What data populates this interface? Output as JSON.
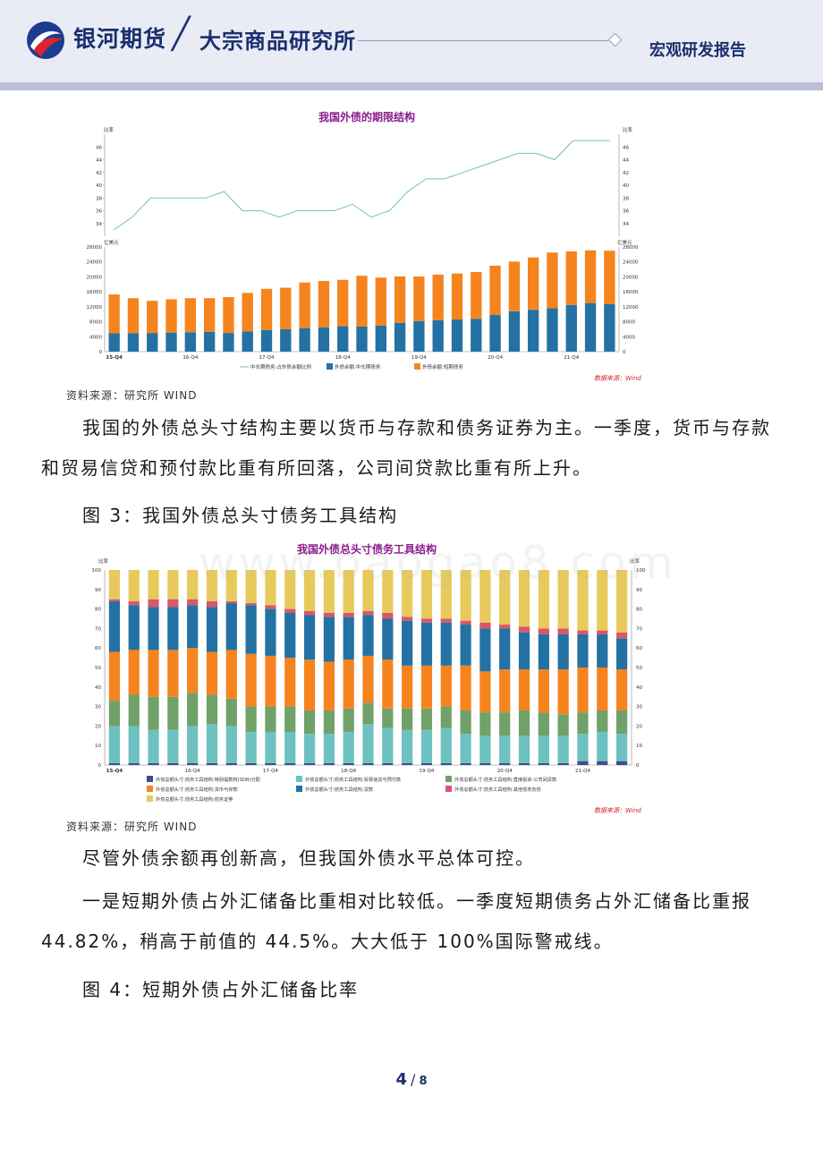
{
  "header": {
    "brand": "银河期货",
    "institute": "大宗商品研究所",
    "report_type": "宏观研发报告"
  },
  "chart1": {
    "title": "我国外债的期限结构",
    "source": "资料来源：研究所 WIND",
    "wind_source": "数据来源：Wind",
    "top_axis_unit_left": "比率",
    "top_axis_unit_right": "比率",
    "bottom_axis_unit_left": "亿美元",
    "bottom_axis_unit_right": "亿美元"
  },
  "para1": "我国的外债总头寸结构主要以货币与存款和债务证券为主。一季度，货币与存款和贸易信贷和预付款比重有所回落，公司间贷款比重有所上升。",
  "fig3_caption": "图 3：我国外债总头寸债务工具结构",
  "chart2": {
    "title": "我国外债总头寸债务工具结构",
    "source": "资料来源：研究所 WIND",
    "wind_source": "数据来源：Wind",
    "axis_unit_left": "比率",
    "axis_unit_right": "比率"
  },
  "para2": "尽管外债余额再创新高，但我国外债水平总体可控。",
  "para3": "一是短期外债占外汇储备比重相对比较低。一季度短期债务占外汇储备比重报 44.82%，稍高于前值的 44.5%。大大低于 100%国际警戒线。",
  "fig4_caption": "图 4：短期外债占外汇储备比率",
  "watermark": "www.baogao8.com",
  "page": {
    "current": "4",
    "sep": "/",
    "total": "8"
  },
  "chart_data": [
    {
      "type": "line",
      "name": "debt-maturity-ratio",
      "x_ticks": [
        "15-Q4",
        "16-Q4",
        "17-Q4",
        "18-Q4",
        "19-Q4",
        "20-Q4",
        "21-Q4"
      ],
      "ylim": [
        32,
        48
      ],
      "y_ticks": [
        34,
        36,
        38,
        40,
        42,
        44,
        46
      ],
      "series": [
        {
          "name": "中长期债务:占外债余额比例",
          "color": "#72c2b6",
          "values": [
            33,
            35,
            38,
            38,
            38,
            38,
            39,
            36,
            36,
            35,
            36,
            36,
            36,
            37,
            35,
            36,
            39,
            41,
            41,
            42,
            43,
            44,
            45,
            45,
            44,
            47,
            47,
            47
          ]
        }
      ]
    },
    {
      "type": "bar",
      "stacked": true,
      "name": "debt-balance-maturity",
      "x_ticks": [
        "15-Q4",
        "16-Q4",
        "17-Q4",
        "18-Q4",
        "19-Q4",
        "20-Q4",
        "21-Q4"
      ],
      "ylim": [
        0,
        28000
      ],
      "y_ticks": [
        0,
        4000,
        8000,
        12000,
        16000,
        20000,
        24000,
        28000
      ],
      "series": [
        {
          "name": "外债余额:中长期债务",
          "color": "#2372a3",
          "values": [
            4900,
            4900,
            5000,
            5100,
            5200,
            5300,
            5000,
            5400,
            5800,
            6000,
            6300,
            6500,
            6800,
            6700,
            7000,
            7700,
            8200,
            8400,
            8600,
            8800,
            9800,
            10800,
            11200,
            11600,
            12500,
            13000,
            12700
          ]
        },
        {
          "name": "外债余额:短期债务",
          "color": "#f5841f",
          "values": [
            10400,
            9400,
            8600,
            8900,
            9100,
            9000,
            9600,
            10300,
            11000,
            11100,
            12200,
            12400,
            12400,
            13600,
            12800,
            12400,
            11900,
            12200,
            12300,
            12500,
            13200,
            13300,
            14000,
            14900,
            14300,
            14100,
            14300
          ]
        }
      ]
    },
    {
      "type": "bar",
      "stacked": true,
      "name": "debt-instrument-structure",
      "x_ticks": [
        "15-Q4",
        "16-Q4",
        "17-Q4",
        "18-Q4",
        "19-Q4",
        "20-Q4",
        "21-Q4"
      ],
      "ylim": [
        0,
        100
      ],
      "y_ticks": [
        0,
        10,
        20,
        30,
        40,
        50,
        60,
        70,
        80,
        90,
        100
      ],
      "series": [
        {
          "name": "外债总额头寸:债务工具结构:特别提款权(SDR)分配",
          "color": "#3a4f8f",
          "values": [
            1,
            1,
            1,
            1,
            1,
            1,
            1,
            1,
            1,
            1,
            1,
            1,
            1,
            1,
            1,
            1,
            1,
            1,
            1,
            1,
            1,
            1,
            1,
            1,
            2,
            2,
            2
          ]
        },
        {
          "name": "外债总额头寸:债务工具结构:贸易信贷与预付款",
          "color": "#6dc1c1",
          "values": [
            19,
            19,
            17,
            17,
            19,
            20,
            19,
            16,
            16,
            16,
            15,
            15,
            16,
            20,
            18,
            17,
            17,
            18,
            15,
            14,
            14,
            14,
            14,
            14,
            14,
            15,
            14
          ]
        },
        {
          "name": "外债总额头寸:债务工具结构:直接投资:公司间贷款",
          "color": "#6fa168",
          "values": [
            13,
            16,
            17,
            17,
            17,
            15,
            14,
            13,
            13,
            13,
            12,
            12,
            12,
            11,
            10,
            11,
            11,
            11,
            12,
            12,
            12,
            13,
            12,
            11,
            11,
            11,
            12
          ]
        },
        {
          "name": "外债总额头寸:债务工具结构:货币与存款",
          "color": "#f5841f",
          "values": [
            25,
            23,
            24,
            24,
            23,
            22,
            25,
            27,
            26,
            25,
            26,
            25,
            25,
            24,
            25,
            22,
            22,
            21,
            23,
            21,
            22,
            21,
            22,
            23,
            23,
            22,
            21
          ]
        },
        {
          "name": "外债总额头寸:债务工具结构:贷款",
          "color": "#2372a3",
          "values": [
            26,
            23,
            22,
            22,
            22,
            23,
            24,
            25,
            24,
            23,
            23,
            23,
            22,
            21,
            21,
            23,
            22,
            22,
            21,
            22,
            21,
            19,
            18,
            18,
            17,
            17,
            16
          ]
        },
        {
          "name": "外债总额头寸:债务工具结构:其他债务负债",
          "color": "#d9566b",
          "values": [
            1,
            2,
            4,
            4,
            3,
            3,
            1,
            1,
            2,
            2,
            2,
            2,
            2,
            2,
            3,
            2,
            2,
            2,
            2,
            3,
            2,
            3,
            3,
            3,
            2,
            2,
            3
          ]
        },
        {
          "name": "外债总额头寸:债务工具结构:债务证券",
          "color": "#e8c95c",
          "values": [
            15,
            16,
            15,
            15,
            15,
            16,
            16,
            17,
            18,
            20,
            21,
            22,
            22,
            21,
            22,
            24,
            25,
            25,
            26,
            27,
            28,
            29,
            30,
            30,
            31,
            31,
            32
          ]
        }
      ]
    }
  ]
}
